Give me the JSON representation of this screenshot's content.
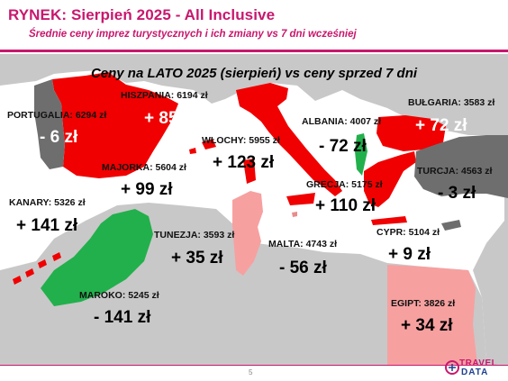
{
  "header": {
    "title": "RYNEK: Sierpień 2025 - All Inclusive",
    "subtitle": "Średnie ceny imprez turystycznych i ich zmiany vs 7 dni wcześniej"
  },
  "map": {
    "title": "Ceny na LATO 2025 (sierpień) vs ceny sprzed 7 dni",
    "colors": {
      "increase": "#f00000",
      "small_increase": "#f7a0a0",
      "decrease_strong": "#22b04c",
      "decrease_moderate": "#e98c8c",
      "small_decrease": "#6e6e6e",
      "background_land": "#c8c8c8",
      "sea": "#ffffff"
    },
    "destinations": [
      {
        "id": "portugalia",
        "label": "PORTUGALIA: 6294 zł",
        "change": "- 6 zł"
      },
      {
        "id": "hiszpania",
        "label": "HISZPANIA: 6194 zł",
        "change": "+ 85 zł"
      },
      {
        "id": "majorka",
        "label": "MAJORKA: 5604 zł",
        "change": "+ 99 zł"
      },
      {
        "id": "wlochy",
        "label": "WŁOCHY: 5955 zł",
        "change": "+ 123 zł"
      },
      {
        "id": "albania",
        "label": "ALBANIA: 4007 zł",
        "change": "- 72 zł"
      },
      {
        "id": "bulgaria",
        "label": "BUŁGARIA: 3583 zł",
        "change": "+ 72 zł"
      },
      {
        "id": "turcja",
        "label": "TURCJA: 4563 zł",
        "change": "- 3 zł"
      },
      {
        "id": "grecja",
        "label": "GRECJA: 5175 zł",
        "change": "+ 110 zł"
      },
      {
        "id": "kanary",
        "label": "KANARY: 5326 zł",
        "change": "+ 141 zł"
      },
      {
        "id": "tunezja",
        "label": "TUNEZJA: 3593 zł",
        "change": "+ 35 zł"
      },
      {
        "id": "malta",
        "label": "MALTA: 4743 zł",
        "change": "- 56 zł"
      },
      {
        "id": "cypr",
        "label": "CYPR: 5104 zł",
        "change": "+ 9 zł"
      },
      {
        "id": "maroko",
        "label": "MAROKO: 5245 zł",
        "change": "- 141 zł"
      },
      {
        "id": "egipt",
        "label": "EGIPT: 3826 zł",
        "change": "+ 34 zł"
      }
    ]
  },
  "footer": {
    "page": "5",
    "logo_line1": "TRAVEL",
    "logo_line2": "DATA"
  }
}
